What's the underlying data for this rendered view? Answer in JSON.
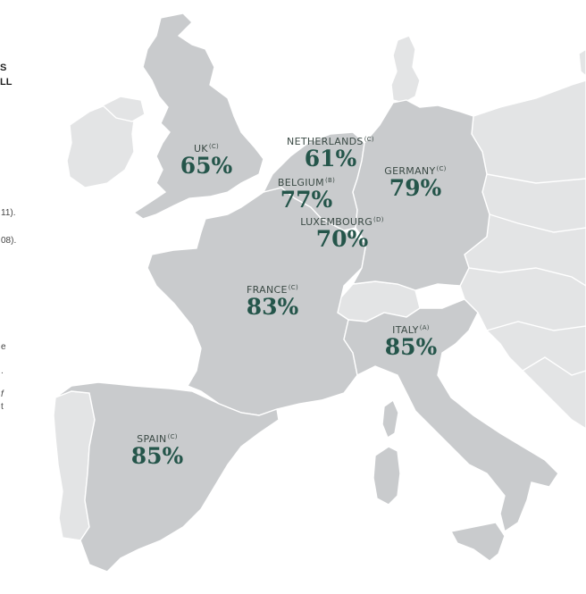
{
  "colors": {
    "highlight": "#c9cbcd",
    "background_land": "#e3e4e5",
    "label_text": "#24554a"
  },
  "left_margin_fragments": [
    {
      "text": "S",
      "bold": true
    },
    {
      "text": "LL",
      "bold": true
    },
    {
      "text": "11).",
      "bold": false
    },
    {
      "text": "08).",
      "bold": false
    },
    {
      "text": "e",
      "bold": false
    },
    {
      "text": ".",
      "bold": false
    },
    {
      "text": "f",
      "bold": false
    },
    {
      "text": "t",
      "bold": false
    }
  ],
  "countries": [
    {
      "id": "uk",
      "name": "UK",
      "note": "(C)",
      "value": "65%"
    },
    {
      "id": "netherlands",
      "name": "NETHERLANDS",
      "note": "(C)",
      "value": "61%"
    },
    {
      "id": "germany",
      "name": "GERMANY",
      "note": "(C)",
      "value": "79%"
    },
    {
      "id": "belgium",
      "name": "BELGIUM",
      "note": "(B)",
      "value": "77%"
    },
    {
      "id": "luxembourg",
      "name": "LUXEMBOURG",
      "note": "(D)",
      "value": "70%"
    },
    {
      "id": "france",
      "name": "FRANCE",
      "note": "(C)",
      "value": "83%"
    },
    {
      "id": "italy",
      "name": "ITALY",
      "note": "(A)",
      "value": "85%"
    },
    {
      "id": "spain",
      "name": "SPAIN",
      "note": "(C)",
      "value": "85%"
    }
  ]
}
